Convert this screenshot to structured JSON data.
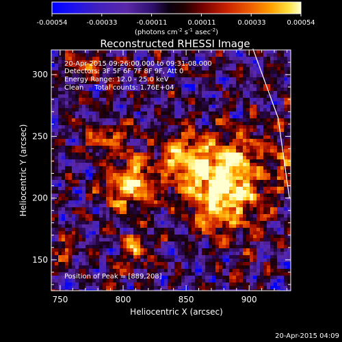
{
  "colorbar": {
    "ticks": [
      "-0.00054",
      "-0.00033",
      "-0.00011",
      "0.00011",
      "0.00033",
      "0.00054"
    ],
    "unit_main": "(photons cm",
    "unit_sup1": "-2",
    "unit_s": " s",
    "unit_sup2": "-1",
    "unit_asec": " asec",
    "unit_sup3": "-2",
    "unit_close": ")"
  },
  "annotations": {
    "time_range": "20-Apr-2015 09:26:00.000 to 09:31:08.000",
    "detectors": "Detectors: 3F 5F 6F 7F 8F 9F, Att 0",
    "energy": "Energy Range: 12.0 - 25.0 keV",
    "clean": "Clean     Total counts: 1.76E+04",
    "peak": "Position of Peak = [889,208]"
  },
  "footer": {
    "timestamp": "20-Apr-2015 04:09"
  },
  "chart_data": {
    "type": "heatmap",
    "title": "Reconstructed RHESSI Image",
    "xlabel": "Heliocentric X (arcsec)",
    "ylabel": "Heliocentric Y (arcsec)",
    "xlim": [
      743,
      933
    ],
    "ylim": [
      125,
      320
    ],
    "xticks": [
      "750",
      "800",
      "850",
      "900"
    ],
    "yticks": [
      "150",
      "200",
      "250",
      "300"
    ],
    "xtick_values": [
      750,
      800,
      850,
      900
    ],
    "ytick_values": [
      150,
      200,
      250,
      300
    ],
    "colorbar_range": [
      -0.00054,
      0.00054
    ],
    "colormap": [
      "#0000ff",
      "#4020c0",
      "#5a28a8",
      "#2a0850",
      "#140008",
      "#700000",
      "#c82000",
      "#f06000",
      "#ffa000",
      "#ffe040",
      "#ffffd0"
    ],
    "peak": [
      889,
      208
    ],
    "sources": [
      {
        "x": 880,
        "y": 212,
        "sx": 22,
        "sy": 26,
        "amp": 1.0
      },
      {
        "x": 805,
        "y": 212,
        "sx": 13,
        "sy": 14,
        "amp": 0.85
      },
      {
        "x": 845,
        "y": 232,
        "sx": 12,
        "sy": 12,
        "amp": 0.6
      },
      {
        "x": 810,
        "y": 158,
        "sx": 8,
        "sy": 9,
        "amp": 0.55
      },
      {
        "x": 752,
        "y": 160,
        "sx": 6,
        "sy": 10,
        "amp": 0.45
      },
      {
        "x": 790,
        "y": 250,
        "sx": 14,
        "sy": 8,
        "amp": 0.5
      },
      {
        "x": 928,
        "y": 235,
        "sx": 5,
        "sy": 12,
        "amp": 0.45
      },
      {
        "x": 770,
        "y": 305,
        "sx": 10,
        "sy": 8,
        "amp": 0.35
      },
      {
        "x": 790,
        "y": 135,
        "sx": 7,
        "sy": 7,
        "amp": 0.4
      }
    ],
    "limb_line": [
      [
        903,
        321
      ],
      [
        923,
        265
      ],
      [
        932,
        200
      ]
    ]
  }
}
